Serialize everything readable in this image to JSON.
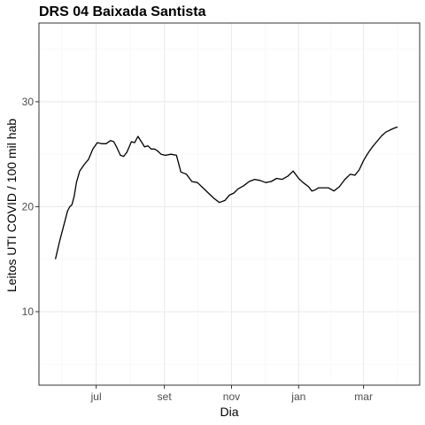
{
  "chart_data": {
    "type": "line",
    "title": "DRS 04 Baixada Santista",
    "xlabel": "Dia",
    "ylabel": "Leitos UTI COVID / 100 mil hab",
    "x_ticks": [
      {
        "label": "jul",
        "date": "2020-07-01"
      },
      {
        "label": "set",
        "date": "2020-09-01"
      },
      {
        "label": "nov",
        "date": "2020-11-01"
      },
      {
        "label": "jan",
        "date": "2021-01-01"
      },
      {
        "label": "mar",
        "date": "2021-03-01"
      }
    ],
    "xlim": [
      "2020-05-10",
      "2021-04-21"
    ],
    "y_ticks": [
      10,
      20,
      30
    ],
    "ylim": [
      3,
      37.5
    ],
    "grid": true,
    "colors": {
      "line": "#000000",
      "grid_major": "#ebebeb",
      "grid_minor": "#f5f5f5",
      "panel_border": "#333333"
    },
    "series": [
      {
        "x": [
          "2020-05-25",
          "2020-05-29",
          "2020-06-02",
          "2020-06-05",
          "2020-06-07",
          "2020-06-09",
          "2020-06-11",
          "2020-06-13",
          "2020-06-16",
          "2020-06-20",
          "2020-06-24",
          "2020-06-28",
          "2020-07-02",
          "2020-07-06",
          "2020-07-10",
          "2020-07-14",
          "2020-07-17",
          "2020-07-20",
          "2020-07-23",
          "2020-07-26",
          "2020-07-29",
          "2020-08-02",
          "2020-08-05",
          "2020-08-08",
          "2020-08-11",
          "2020-08-14",
          "2020-08-17",
          "2020-08-20",
          "2020-08-23",
          "2020-08-26",
          "2020-08-29",
          "2020-09-02",
          "2020-09-07",
          "2020-09-12",
          "2020-09-16",
          "2020-09-21",
          "2020-09-26",
          "2020-10-01",
          "2020-10-06",
          "2020-10-11",
          "2020-10-16",
          "2020-10-21",
          "2020-10-26",
          "2020-10-30",
          "2020-11-03",
          "2020-11-07",
          "2020-11-12",
          "2020-11-17",
          "2020-11-22",
          "2020-11-27",
          "2020-12-02",
          "2020-12-07",
          "2020-12-12",
          "2020-12-17",
          "2020-12-22",
          "2020-12-27",
          "2021-01-01",
          "2021-01-05",
          "2021-01-10",
          "2021-01-13",
          "2021-01-16",
          "2021-01-19",
          "2021-01-23",
          "2021-01-28",
          "2021-02-02",
          "2021-02-07",
          "2021-02-12",
          "2021-02-17",
          "2021-02-21",
          "2021-02-25",
          "2021-03-01",
          "2021-03-05",
          "2021-03-09",
          "2021-03-13",
          "2021-03-17",
          "2021-03-21",
          "2021-03-25",
          "2021-03-29",
          "2021-04-01"
        ],
        "y": [
          15.0,
          16.8,
          18.4,
          19.6,
          20.0,
          20.2,
          21.0,
          22.3,
          23.4,
          24.0,
          24.5,
          25.5,
          26.1,
          26.0,
          26.0,
          26.3,
          26.2,
          25.6,
          24.9,
          24.8,
          25.2,
          26.2,
          26.1,
          26.7,
          26.2,
          25.7,
          25.8,
          25.5,
          25.5,
          25.3,
          25.0,
          24.9,
          25.0,
          24.9,
          23.3,
          23.1,
          22.4,
          22.3,
          21.8,
          21.3,
          20.8,
          20.4,
          20.6,
          21.1,
          21.3,
          21.7,
          22.0,
          22.4,
          22.6,
          22.5,
          22.3,
          22.4,
          22.7,
          22.6,
          22.9,
          23.4,
          22.7,
          22.3,
          21.9,
          21.5,
          21.6,
          21.8,
          21.8,
          21.8,
          21.5,
          21.9,
          22.6,
          23.1,
          23.0,
          23.5,
          24.4,
          25.1,
          25.7,
          26.2,
          26.7,
          27.1,
          27.3,
          27.5,
          27.6
        ]
      }
    ]
  }
}
